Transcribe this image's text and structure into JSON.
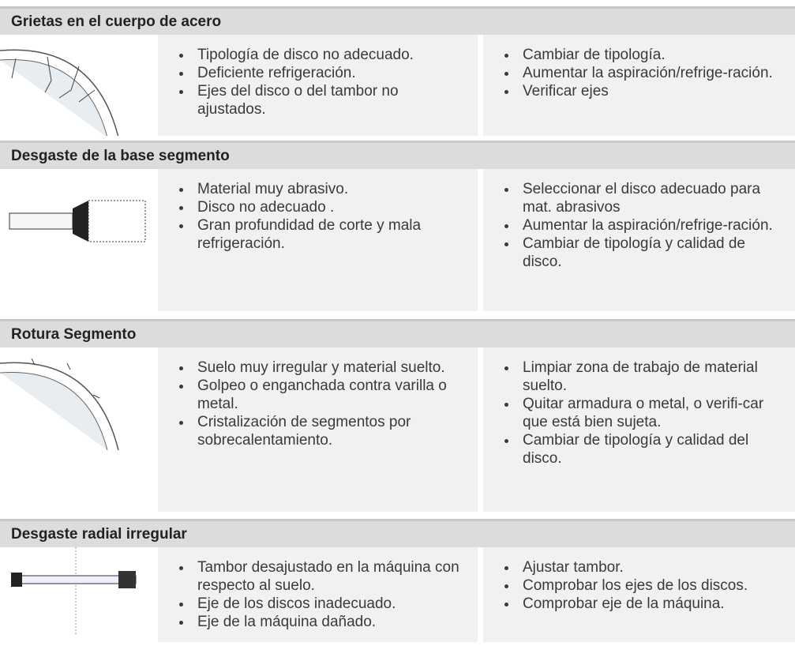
{
  "sections": [
    {
      "title": "Grietas en el cuerpo de acero",
      "causes": [
        "Tipología de disco no adecuado.",
        "Deficiente refrigeración.",
        "Ejes del disco o del tambor no ajustados."
      ],
      "solutions": [
        "Cambiar de tipología.",
        "Aumentar la aspiración/refrige-ración.",
        "Verificar ejes"
      ]
    },
    {
      "title": "Desgaste de la base segmento",
      "causes": [
        "Material muy abrasivo.",
        "Disco no adecuado .",
        "Gran profundidad de corte y mala refrigeración."
      ],
      "solutions": [
        "Seleccionar el disco adecuado para mat. abrasivos",
        "Aumentar la aspiración/refrige-ración.",
        "Cambiar de tipología y calidad de disco."
      ]
    },
    {
      "title": "Rotura Segmento",
      "causes": [
        "Suelo muy irregular y material suelto.",
        "Golpeo o enganchada contra varilla o metal.",
        "Cristalización de segmentos por sobrecalentamiento."
      ],
      "solutions": [
        "Limpiar zona de trabajo de material suelto.",
        "Quitar armadura o metal, o verifi-car que está bien sujeta.",
        "Cambiar de tipología y calidad del disco."
      ]
    },
    {
      "title": "Desgaste radial irregular",
      "causes": [
        "Tambor desajustado en la máquina con respecto al suelo.",
        "Eje de los discos inadecuado.",
        "Eje de la máquina dañado."
      ],
      "solutions": [
        "Ajustar tambor.",
        "Comprobar los ejes de los discos.",
        "Comprobar eje de la máquina."
      ]
    }
  ]
}
